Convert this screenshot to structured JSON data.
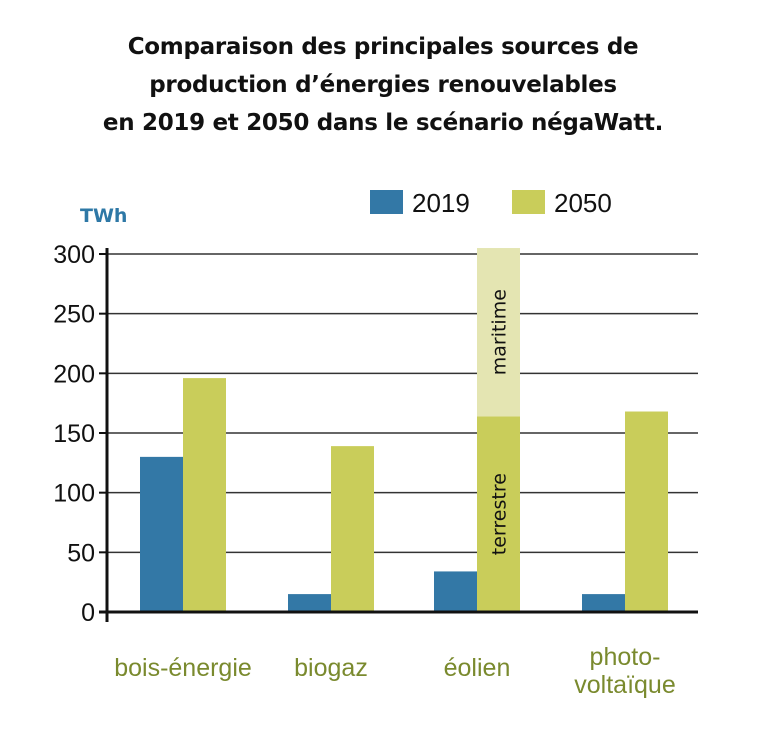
{
  "chart_data": {
    "type": "bar",
    "title": [
      "Comparaison des principales sources de",
      "production d’énergies renouvelables",
      "en 2019 et 2050 dans le scénario négaWatt."
    ],
    "ylabel": "TWh",
    "xlabel": "",
    "ylim": [
      0,
      300
    ],
    "yticks": [
      "0",
      "50",
      "100",
      "150",
      "200",
      "250",
      "300"
    ],
    "grid": true,
    "legend_position": "top",
    "categories": [
      {
        "lines": [
          "bois-énergie"
        ]
      },
      {
        "lines": [
          "biogaz"
        ]
      },
      {
        "lines": [
          "éolien"
        ]
      },
      {
        "lines": [
          "photo-",
          "voltaïque"
        ]
      }
    ],
    "series": [
      {
        "name": "2019",
        "color": "#3378a6",
        "values": [
          130,
          15,
          34,
          15
        ]
      },
      {
        "name": "2050",
        "color": "#c9cd5a",
        "values": [
          196,
          139,
          305,
          168
        ]
      }
    ],
    "stacked_segments": {
      "category_index": 2,
      "series": "2050",
      "segments": [
        {
          "label": "terrestre",
          "value": 164,
          "color": "#c9cd5a"
        },
        {
          "label": "maritime",
          "value": 141,
          "color": "#e4e5b2"
        }
      ]
    }
  }
}
